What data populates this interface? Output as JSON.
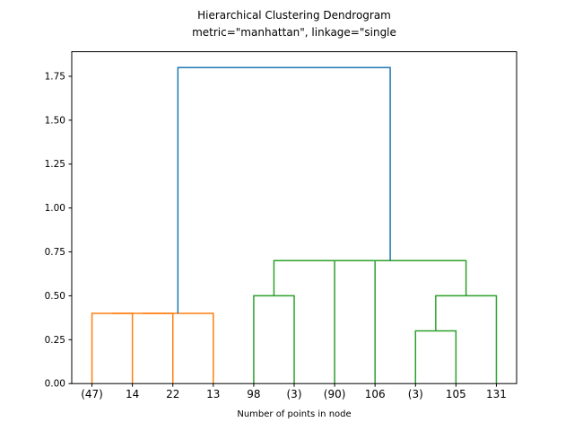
{
  "chart_data": {
    "type": "dendrogram",
    "title": "Hierarchical Clustering Dendrogram",
    "subtitle": "metric=\"manhattan\", linkage=\"single",
    "xlabel": "Number of points in node",
    "leaf_labels": [
      "(47)",
      "14",
      "22",
      "13",
      "98",
      "(3)",
      "(90)",
      "106",
      "(3)",
      "105",
      "131"
    ],
    "leaf_x": [
      5,
      15,
      25,
      35,
      45,
      55,
      65,
      75,
      85,
      95,
      105
    ],
    "yticks": [
      "0.00",
      "0.25",
      "0.50",
      "0.75",
      "1.00",
      "1.25",
      "1.50",
      "1.75"
    ],
    "ytick_values": [
      0,
      0.25,
      0.5,
      0.75,
      1.0,
      1.25,
      1.5,
      1.75
    ],
    "xlim": [
      0,
      110
    ],
    "ylim": [
      0,
      1.89
    ],
    "grid": false,
    "legend": "none",
    "colors": {
      "cluster1": "#ff7f0e",
      "cluster2": "#2ca02c",
      "root": "#1f77b4",
      "axis": "#000000"
    },
    "links": [
      {
        "color": "#ff7f0e",
        "xs": [
          5,
          5,
          15,
          15
        ],
        "ys": [
          0,
          0.4,
          0.4,
          0
        ]
      },
      {
        "color": "#ff7f0e",
        "xs": [
          10,
          10,
          25,
          25
        ],
        "ys": [
          0.4,
          0.4,
          0.4,
          0
        ]
      },
      {
        "color": "#ff7f0e",
        "xs": [
          17.5,
          17.5,
          35,
          35
        ],
        "ys": [
          0.4,
          0.4,
          0.4,
          0
        ]
      },
      {
        "color": "#2ca02c",
        "xs": [
          45,
          45,
          55,
          55
        ],
        "ys": [
          0,
          0.5,
          0.5,
          0
        ]
      },
      {
        "color": "#2ca02c",
        "xs": [
          85,
          85,
          95,
          95
        ],
        "ys": [
          0,
          0.3,
          0.3,
          0
        ]
      },
      {
        "color": "#2ca02c",
        "xs": [
          90,
          90,
          105,
          105
        ],
        "ys": [
          0.3,
          0.5,
          0.5,
          0
        ]
      },
      {
        "color": "#2ca02c",
        "xs": [
          65,
          65,
          75,
          75
        ],
        "ys": [
          0,
          0.7,
          0.7,
          0
        ]
      },
      {
        "color": "#2ca02c",
        "xs": [
          50,
          50,
          70,
          70
        ],
        "ys": [
          0.5,
          0.7,
          0.7,
          0.7
        ]
      },
      {
        "color": "#2ca02c",
        "xs": [
          60,
          60,
          97.5,
          97.5
        ],
        "ys": [
          0.7,
          0.7,
          0.7,
          0.5
        ]
      },
      {
        "color": "#1f77b4",
        "xs": [
          26.25,
          26.25,
          78.75,
          78.75
        ],
        "ys": [
          0.4,
          1.8,
          1.8,
          0.7
        ]
      }
    ],
    "merge_heights": {
      "cluster1_root": 0.4,
      "cluster2_root": 0.7,
      "top_merge": 1.8
    }
  }
}
